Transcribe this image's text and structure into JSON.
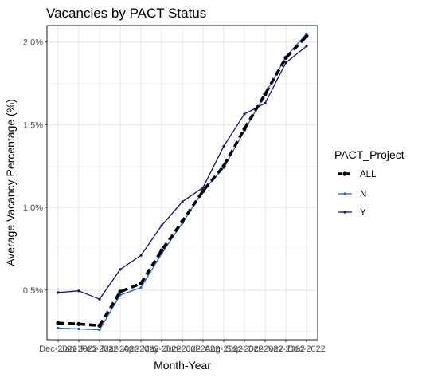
{
  "chart_data": {
    "type": "line",
    "title": "Vacancies by PACT Status",
    "xlabel": "Month-Year",
    "ylabel": "Average Vacancy Percentage (%)",
    "categories": [
      "Dec-2021",
      "Jan-2022",
      "Feb-2022",
      "Mar-2022",
      "Apr-2022",
      "May-2022",
      "Jun-2022",
      "Jul-2022",
      "Aug-2022",
      "Sep-2022",
      "Oct-2022",
      "Nov-2022",
      "Dec-2022"
    ],
    "tick_labels": [
      "Dec-2021",
      "Jan-2022",
      "Feb-2022",
      "Mar-2022",
      "Apr-2022",
      "May-2022",
      "Jun-2022",
      "Jul-2022",
      "Aug-2022",
      "Sep-2022",
      "Oct-2022",
      "Nov-2022",
      "Dec-2022"
    ],
    "y_ticks": [
      0.5,
      1.0,
      1.5,
      2.0
    ],
    "y_tick_labels": [
      "0.5%",
      "1.0%",
      "1.5%",
      "2.0%"
    ],
    "ylim": [
      0.2,
      2.1
    ],
    "grid": true,
    "legend_position": "right",
    "legend_title": "PACT_Project",
    "series": [
      {
        "name": "ALL",
        "color": "#000000",
        "style": "dashed-thick",
        "values": [
          0.3,
          0.295,
          0.285,
          0.49,
          0.54,
          0.74,
          0.915,
          1.1,
          1.25,
          1.475,
          1.685,
          1.905,
          2.035
        ]
      },
      {
        "name": "N",
        "color": "#1f5fd6",
        "style": "solid",
        "values": [
          0.27,
          0.265,
          0.26,
          0.47,
          0.515,
          0.72,
          0.905,
          1.1,
          1.24,
          1.465,
          1.685,
          1.91,
          2.05
        ]
      },
      {
        "name": "Y",
        "color": "#1a0d6b",
        "style": "solid",
        "values": [
          0.485,
          0.495,
          0.445,
          0.625,
          0.71,
          0.89,
          1.035,
          1.12,
          1.37,
          1.565,
          1.63,
          1.875,
          1.975
        ]
      }
    ]
  }
}
